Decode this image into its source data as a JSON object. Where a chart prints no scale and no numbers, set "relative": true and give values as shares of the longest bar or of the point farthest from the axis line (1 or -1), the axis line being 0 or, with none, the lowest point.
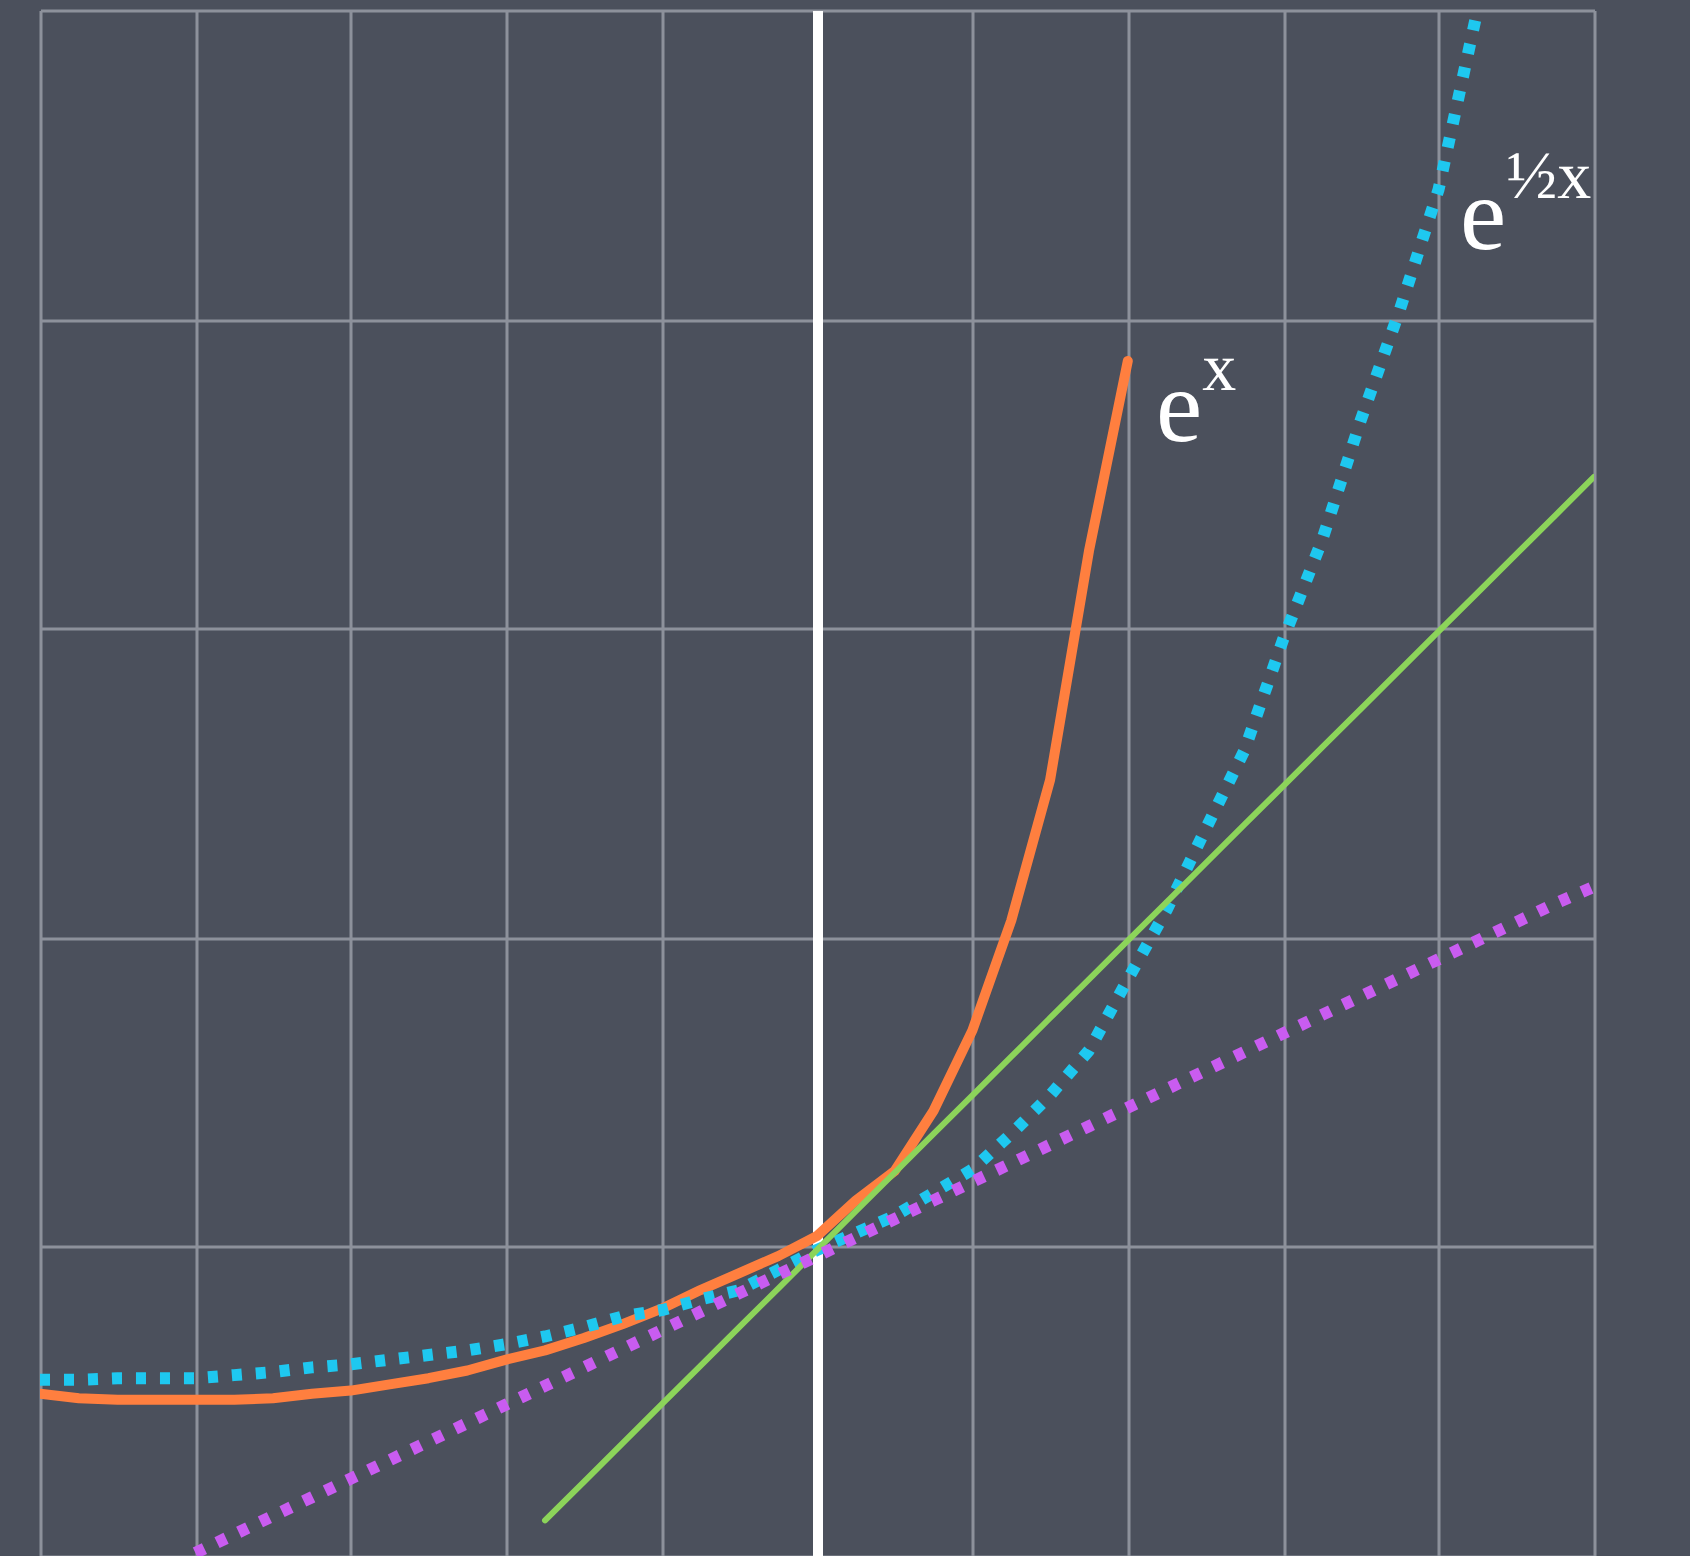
{
  "chart_data": {
    "type": "line",
    "relative": true,
    "grid": true,
    "categories": [
      null,
      null,
      null,
      null,
      null,
      null,
      null,
      null,
      null,
      null,
      null,
      null,
      null,
      null,
      null,
      null,
      null,
      null,
      null,
      null,
      null,
      null,
      null,
      null,
      null,
      null,
      null,
      null,
      null,
      null,
      null,
      null,
      null,
      null,
      null,
      null,
      null,
      null,
      null,
      null,
      null
    ],
    "annotations": [
      "e$^{x}$",
      "e$^{½x}$"
    ],
    "series": [
      {
        "color": "#ff7f3f",
        "line_style": "solid",
        "values": [
          0.105,
          0.102,
          0.101,
          0.101,
          0.101,
          0.101,
          0.102,
          0.105,
          0.107,
          0.111,
          0.115,
          0.12,
          0.127,
          0.133,
          0.141,
          0.15,
          0.16,
          0.172,
          0.183,
          0.194,
          0.207,
          0.23,
          0.249,
          0.288,
          0.34,
          0.411,
          0.502,
          0.65,
          0.773,
          null,
          null,
          null,
          null,
          null,
          null,
          null,
          null,
          null,
          null,
          null,
          null
        ]
      },
      {
        "color": "#1ec8f0",
        "line_style": "dotted",
        "values": [
          0.114,
          0.114,
          0.115,
          0.115,
          0.115,
          0.117,
          0.119,
          0.122,
          0.124,
          0.127,
          0.13,
          0.133,
          0.137,
          0.142,
          0.148,
          0.155,
          0.159,
          0.166,
          0.172,
          0.185,
          0.198,
          0.209,
          0.22,
          0.235,
          0.25,
          0.273,
          0.298,
          0.327,
          0.373,
          0.418,
          0.47,
          0.521,
          0.593,
          0.657,
          0.735,
          0.806,
          0.884,
          1,
          null,
          null,
          null
        ]
      },
      {
        "color": "#8cd45a",
        "line_style": "solid",
        "values": [
          null,
          null,
          null,
          null,
          null,
          null,
          null,
          null,
          null,
          null,
          null,
          null,
          null,
          0.023,
          0.048,
          0.073,
          0.098,
          0.123,
          0.148,
          0.173,
          0.198,
          0.223,
          0.248,
          0.273,
          0.298,
          0.323,
          0.348,
          0.373,
          0.398,
          0.423,
          0.448,
          0.473,
          0.498,
          0.523,
          0.548,
          0.573,
          0.598,
          0.623,
          0.648,
          0.673,
          0.698
        ]
      },
      {
        "color": "#c95cf0",
        "line_style": "dotted",
        "values": [
          null,
          null,
          null,
          null,
          0.002,
          0.014,
          0.026,
          0.038,
          0.05,
          0.062,
          0.074,
          0.086,
          0.098,
          0.11,
          0.122,
          0.134,
          0.146,
          0.158,
          0.17,
          0.182,
          0.194,
          0.206,
          0.218,
          0.23,
          0.242,
          0.254,
          0.266,
          0.278,
          0.29,
          0.302,
          0.314,
          0.326,
          0.338,
          0.35,
          0.362,
          0.374,
          0.386,
          0.398,
          0.41,
          0.422,
          0.433
        ]
      }
    ]
  }
}
